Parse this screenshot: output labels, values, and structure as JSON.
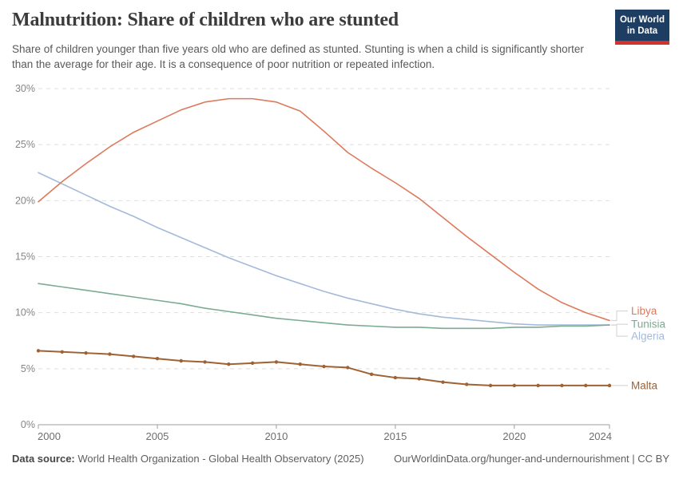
{
  "header": {
    "title": "Malnutrition: Share of children who are stunted",
    "subtitle": "Share of children younger than five years old who are defined as stunted. Stunting is when a child is significantly shorter than the average for their age. It is a consequence of poor nutrition or repeated infection.",
    "logo": {
      "line1": "Our World",
      "line2": "in Data",
      "bg": "#1d3d63",
      "accent": "#d0342c"
    }
  },
  "chart_data": {
    "type": "line",
    "title": "Malnutrition: Share of children who are stunted",
    "xlabel": "",
    "ylabel": "",
    "ylim": [
      0,
      30
    ],
    "y_ticks": [
      0,
      5,
      10,
      15,
      20,
      25,
      30
    ],
    "y_tick_suffix": "%",
    "x_ticks": [
      2000,
      2005,
      2010,
      2015,
      2020,
      2024
    ],
    "grid": "horizontal-dashed",
    "legend_position": "right-of-line-ends",
    "x": [
      2000,
      2001,
      2002,
      2003,
      2004,
      2005,
      2006,
      2007,
      2008,
      2009,
      2010,
      2011,
      2012,
      2013,
      2014,
      2015,
      2016,
      2017,
      2018,
      2019,
      2020,
      2021,
      2022,
      2023,
      2024
    ],
    "series": [
      {
        "name": "Algeria",
        "color": "#a4badb",
        "markers": false,
        "label_dy": 14,
        "values": [
          22.5,
          21.5,
          20.5,
          19.5,
          18.6,
          17.6,
          16.7,
          15.8,
          14.9,
          14.1,
          13.3,
          12.6,
          11.9,
          11.3,
          10.8,
          10.3,
          9.9,
          9.6,
          9.4,
          9.2,
          9.0,
          8.9,
          8.9,
          8.9,
          8.9
        ]
      },
      {
        "name": "Tunisia",
        "color": "#7bab92",
        "markers": false,
        "label_dy": -1,
        "values": [
          12.6,
          12.3,
          12.0,
          11.7,
          11.4,
          11.1,
          10.8,
          10.4,
          10.1,
          9.8,
          9.5,
          9.3,
          9.1,
          8.9,
          8.8,
          8.7,
          8.7,
          8.6,
          8.6,
          8.6,
          8.7,
          8.7,
          8.8,
          8.8,
          8.9
        ]
      },
      {
        "name": "Libya",
        "color": "#dd7a5c",
        "markers": false,
        "label_dy": -12,
        "values": [
          19.9,
          21.7,
          23.3,
          24.8,
          26.1,
          27.1,
          28.1,
          28.8,
          29.1,
          29.1,
          28.8,
          28.0,
          26.2,
          24.3,
          22.9,
          21.6,
          20.2,
          18.5,
          16.8,
          15.2,
          13.6,
          12.1,
          10.9,
          10.0,
          9.3
        ]
      },
      {
        "name": "Malta",
        "color": "#9e6234",
        "markers": true,
        "label_dy": 0,
        "values": [
          6.6,
          6.5,
          6.4,
          6.3,
          6.1,
          5.9,
          5.7,
          5.6,
          5.4,
          5.5,
          5.6,
          5.4,
          5.2,
          5.1,
          4.5,
          4.2,
          4.1,
          3.8,
          3.6,
          3.5,
          3.5,
          3.5,
          3.5,
          3.5,
          3.5
        ]
      }
    ]
  },
  "footer": {
    "datasource_label": "Data source:",
    "datasource": "World Health Organization - Global Health Observatory (2025)",
    "right": "OurWorldinData.org/hunger-and-undernourishment | CC BY"
  }
}
